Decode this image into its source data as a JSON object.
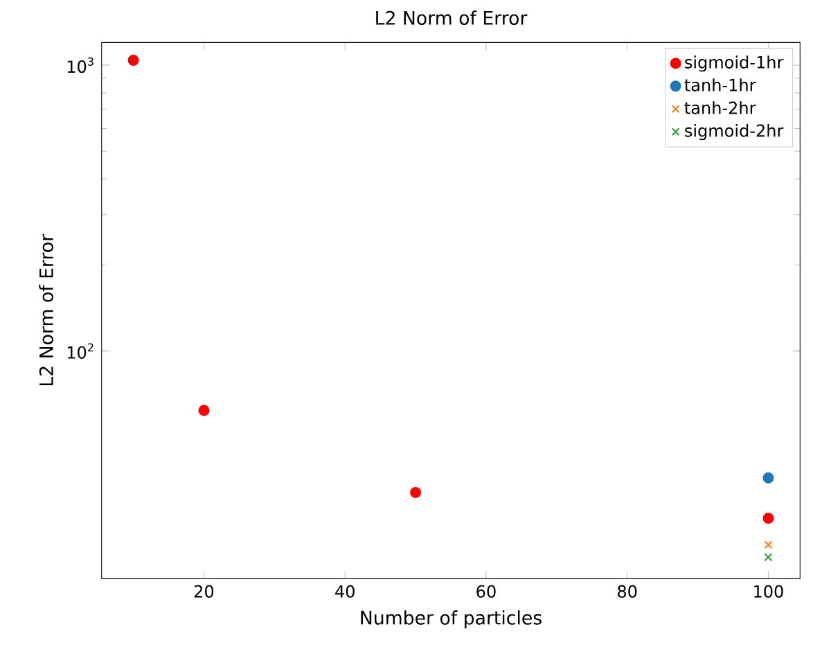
{
  "chart_data": {
    "type": "scatter",
    "title": "L2 Norm of Error",
    "xlabel": "Number of particles",
    "ylabel": "L2 Norm of Error",
    "log": "y",
    "xlim": [
      5.5,
      104.5
    ],
    "ylim": [
      16,
      1200
    ],
    "xticks": [
      20,
      40,
      60,
      80,
      100
    ],
    "yticks": [
      {
        "value": 100,
        "label": "10$^{2}$"
      },
      {
        "value": 1000,
        "label": "10$^{3}$"
      }
    ],
    "legend": "top right",
    "grid": false,
    "series": [
      {
        "name": "sigmoid-1hr",
        "color": "#ff0000",
        "marker": "circle",
        "x": [
          10,
          20,
          50,
          100
        ],
        "values": [
          1040,
          62,
          32,
          26
        ]
      },
      {
        "name": "tanh-1hr",
        "color": "#1f77b4",
        "marker": "circle",
        "x": [
          100
        ],
        "values": [
          36
        ]
      },
      {
        "name": "tanh-2hr",
        "color": "#ff7f0e",
        "marker": "cross",
        "x": [
          100
        ],
        "values": [
          21
        ]
      },
      {
        "name": "sigmoid-2hr",
        "color": "#2ca02c",
        "marker": "cross",
        "x": [
          100
        ],
        "values": [
          19
        ]
      }
    ]
  }
}
